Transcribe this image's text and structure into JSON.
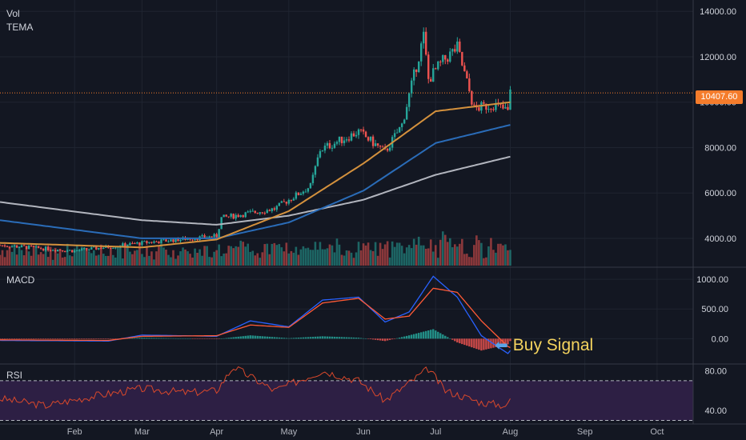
{
  "header": {
    "vol": "Vol",
    "tema": "TEMA"
  },
  "macd": {
    "label": "MACD"
  },
  "rsi": {
    "label": "RSI"
  },
  "price_tag": "10407.60",
  "buy_signal": "Buy Signal",
  "colors": {
    "bg": "#131722",
    "up": "#26a69a",
    "down": "#ef5350",
    "ma_orange": "#d4913d",
    "ma_blue": "#2a6cb8",
    "ma_white": "#b2b5be",
    "macd": "#2962ff",
    "signal": "#ff5a36",
    "rsi": "#d9482b",
    "rsi_band": "#2d1f44",
    "price_line": "#f57c2b"
  },
  "chart_data": [
    {
      "type": "line",
      "title": "",
      "x_ticks": [
        "Feb",
        "Mar",
        "Apr",
        "May",
        "Jun",
        "Jul",
        "Aug",
        "Sep",
        "Oct"
      ],
      "y_ticks": [
        "4000.00",
        "6000.00",
        "8000.00",
        "10000.00",
        "12000.00",
        "14000.00"
      ],
      "ylim": [
        2800,
        14500
      ],
      "last_price": 10407.6,
      "price_approx": {
        "dates": [
          "2019-01-01",
          "2019-02-01",
          "2019-03-01",
          "2019-04-01",
          "2019-04-03",
          "2019-04-25",
          "2019-05-10",
          "2019-05-14",
          "2019-05-30",
          "2019-06-10",
          "2019-06-17",
          "2019-06-26",
          "2019-06-28",
          "2019-07-04",
          "2019-07-10",
          "2019-07-17",
          "2019-07-25",
          "2019-07-31",
          "2019-08-01"
        ],
        "close": [
          3700,
          3450,
          3800,
          4100,
          4900,
          5300,
          6300,
          7900,
          8700,
          7800,
          9000,
          12900,
          11000,
          11800,
          12400,
          9700,
          9900,
          9600,
          10400
        ]
      },
      "ma_orange": {
        "dates": [
          "2019-01-01",
          "2019-03-01",
          "2019-04-01",
          "2019-05-01",
          "2019-06-01",
          "2019-07-01",
          "2019-08-01"
        ],
        "values": [
          3800,
          3600,
          3950,
          5200,
          7300,
          9600,
          10000
        ]
      },
      "ma_blue": {
        "dates": [
          "2019-01-01",
          "2019-03-01",
          "2019-04-01",
          "2019-05-01",
          "2019-06-01",
          "2019-07-01",
          "2019-08-01"
        ],
        "values": [
          4800,
          4000,
          4000,
          4700,
          6100,
          8200,
          9000
        ]
      },
      "ma_white": {
        "dates": [
          "2019-01-01",
          "2019-03-01",
          "2019-04-01",
          "2019-05-01",
          "2019-06-01",
          "2019-07-01",
          "2019-08-01"
        ],
        "values": [
          5600,
          4800,
          4600,
          5000,
          5700,
          6800,
          7600
        ]
      }
    },
    {
      "type": "line",
      "title": "MACD",
      "y_ticks": [
        "0.00",
        "500.00",
        "1000.00"
      ],
      "ylim": [
        -400,
        1150
      ],
      "series": [
        {
          "dates": [
            "2019-01-01",
            "2019-02-15",
            "2019-03-01",
            "2019-04-01",
            "2019-04-15",
            "2019-05-01",
            "2019-05-15",
            "2019-05-30",
            "2019-06-10",
            "2019-06-20",
            "2019-06-30",
            "2019-07-10",
            "2019-07-20",
            "2019-07-31",
            "2019-08-01"
          ],
          "values": [
            -30,
            -40,
            60,
            40,
            300,
            200,
            650,
            700,
            280,
            450,
            1050,
            700,
            50,
            -250,
            -200
          ]
        },
        {
          "dates": [
            "2019-01-01",
            "2019-02-15",
            "2019-03-01",
            "2019-04-01",
            "2019-04-15",
            "2019-05-01",
            "2019-05-15",
            "2019-05-30",
            "2019-06-10",
            "2019-06-20",
            "2019-06-30",
            "2019-07-10",
            "2019-07-20",
            "2019-07-31",
            "2019-08-01"
          ],
          "values": [
            -20,
            -30,
            40,
            50,
            230,
            190,
            600,
            680,
            330,
            380,
            850,
            780,
            300,
            -130,
            -150
          ]
        }
      ]
    },
    {
      "type": "line",
      "title": "RSI",
      "y_ticks": [
        "40.00",
        "80.00"
      ],
      "ylim": [
        28,
        86
      ],
      "bands": [
        70,
        30
      ],
      "values": {
        "dates": [
          "2019-01-01",
          "2019-01-20",
          "2019-02-10",
          "2019-03-01",
          "2019-03-20",
          "2019-04-01",
          "2019-04-08",
          "2019-04-25",
          "2019-05-15",
          "2019-05-30",
          "2019-06-10",
          "2019-06-28",
          "2019-07-05",
          "2019-07-20",
          "2019-07-31",
          "2019-08-01"
        ],
        "rsi": [
          52,
          45,
          55,
          62,
          58,
          60,
          84,
          60,
          80,
          70,
          50,
          82,
          60,
          48,
          45,
          52
        ]
      }
    }
  ]
}
